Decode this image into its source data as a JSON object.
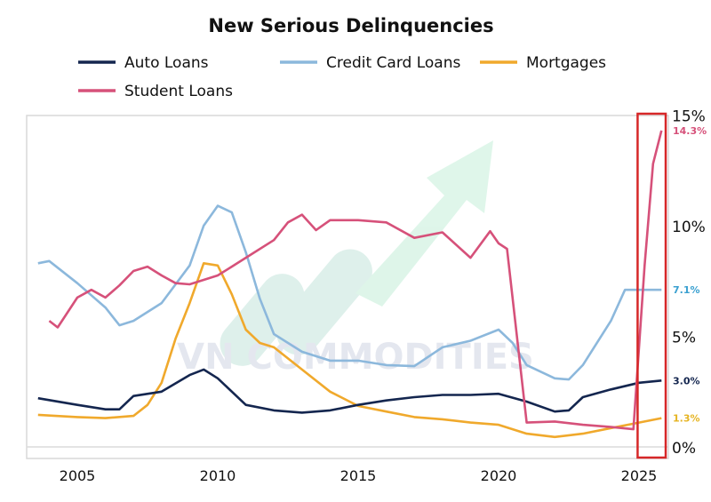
{
  "chart_data": {
    "type": "line",
    "title": "New Serious Delinquencies",
    "xlabel": "",
    "ylabel": "",
    "xlim": [
      2003.6,
      2026.3
    ],
    "ylim": [
      0,
      15
    ],
    "x_ticks": [
      "2005",
      "2010",
      "2015",
      "2020",
      "2025"
    ],
    "y_ticks": [
      "0%",
      "5%",
      "10%",
      "15%"
    ],
    "y_axis_side": "right",
    "grid": false,
    "legend_placement": "top",
    "highlight_box": {
      "from": 2024.95,
      "to": 2025.95,
      "color": "#d62728"
    },
    "watermark": "VN COMMODITIES",
    "series": [
      {
        "name": "Auto Loans",
        "color": "#14264f",
        "end_label": "3.0%",
        "points": [
          [
            2003.6,
            2.2
          ],
          [
            2005,
            1.9
          ],
          [
            2006,
            1.7
          ],
          [
            2006.5,
            1.7
          ],
          [
            2007,
            2.3
          ],
          [
            2008,
            2.5
          ],
          [
            2009,
            3.25
          ],
          [
            2009.5,
            3.5
          ],
          [
            2010,
            3.1
          ],
          [
            2011,
            1.9
          ],
          [
            2012,
            1.65
          ],
          [
            2013,
            1.55
          ],
          [
            2014,
            1.65
          ],
          [
            2015,
            1.9
          ],
          [
            2016,
            2.1
          ],
          [
            2017,
            2.25
          ],
          [
            2018,
            2.35
          ],
          [
            2019,
            2.35
          ],
          [
            2020,
            2.4
          ],
          [
            2021,
            2.05
          ],
          [
            2022,
            1.6
          ],
          [
            2022.5,
            1.65
          ],
          [
            2023,
            2.25
          ],
          [
            2024,
            2.6
          ],
          [
            2025,
            2.9
          ],
          [
            2025.8,
            3.0
          ]
        ]
      },
      {
        "name": "Credit Card Loans",
        "color": "#8cb8dc",
        "end_label": "7.1%",
        "points": [
          [
            2003.6,
            8.3
          ],
          [
            2004,
            8.4
          ],
          [
            2005,
            7.4
          ],
          [
            2006,
            6.3
          ],
          [
            2006.5,
            5.5
          ],
          [
            2007,
            5.7
          ],
          [
            2008,
            6.5
          ],
          [
            2009,
            8.2
          ],
          [
            2009.5,
            10.0
          ],
          [
            2010,
            10.9
          ],
          [
            2010.5,
            10.6
          ],
          [
            2011,
            8.8
          ],
          [
            2011.5,
            6.7
          ],
          [
            2012,
            5.1
          ],
          [
            2013,
            4.3
          ],
          [
            2014,
            3.9
          ],
          [
            2015,
            3.9
          ],
          [
            2016,
            3.7
          ],
          [
            2017,
            3.65
          ],
          [
            2018,
            4.5
          ],
          [
            2019,
            4.8
          ],
          [
            2020,
            5.3
          ],
          [
            2020.5,
            4.7
          ],
          [
            2021,
            3.7
          ],
          [
            2022,
            3.1
          ],
          [
            2022.5,
            3.05
          ],
          [
            2023,
            3.7
          ],
          [
            2024,
            5.7
          ],
          [
            2024.5,
            7.1
          ],
          [
            2025,
            7.1
          ],
          [
            2025.8,
            7.1
          ]
        ]
      },
      {
        "name": "Mortgages",
        "color": "#f0a92c",
        "end_label": "1.3%",
        "points": [
          [
            2003.6,
            1.45
          ],
          [
            2005,
            1.35
          ],
          [
            2006,
            1.3
          ],
          [
            2007,
            1.4
          ],
          [
            2007.5,
            1.9
          ],
          [
            2008,
            2.9
          ],
          [
            2008.5,
            4.9
          ],
          [
            2009,
            6.5
          ],
          [
            2009.5,
            8.3
          ],
          [
            2010,
            8.2
          ],
          [
            2010.5,
            6.9
          ],
          [
            2011,
            5.3
          ],
          [
            2011.5,
            4.7
          ],
          [
            2012,
            4.5
          ],
          [
            2013,
            3.5
          ],
          [
            2014,
            2.5
          ],
          [
            2015,
            1.85
          ],
          [
            2016,
            1.6
          ],
          [
            2017,
            1.35
          ],
          [
            2018,
            1.25
          ],
          [
            2019,
            1.1
          ],
          [
            2020,
            1.0
          ],
          [
            2021,
            0.6
          ],
          [
            2022,
            0.45
          ],
          [
            2023,
            0.6
          ],
          [
            2024,
            0.85
          ],
          [
            2025,
            1.1
          ],
          [
            2025.8,
            1.3
          ]
        ]
      },
      {
        "name": "Student Loans",
        "color": "#d6517a",
        "end_label": "14.3%",
        "points": [
          [
            2004,
            5.7
          ],
          [
            2004.3,
            5.4
          ],
          [
            2005,
            6.75
          ],
          [
            2005.5,
            7.1
          ],
          [
            2006,
            6.75
          ],
          [
            2006.5,
            7.3
          ],
          [
            2007,
            7.95
          ],
          [
            2007.5,
            8.15
          ],
          [
            2008,
            7.75
          ],
          [
            2008.5,
            7.4
          ],
          [
            2009,
            7.35
          ],
          [
            2010,
            7.75
          ],
          [
            2010.5,
            8.15
          ],
          [
            2011,
            8.55
          ],
          [
            2012,
            9.35
          ],
          [
            2012.5,
            10.15
          ],
          [
            2013,
            10.5
          ],
          [
            2013.5,
            9.8
          ],
          [
            2014,
            10.25
          ],
          [
            2015,
            10.25
          ],
          [
            2016,
            10.15
          ],
          [
            2017,
            9.45
          ],
          [
            2018,
            9.7
          ],
          [
            2019,
            8.55
          ],
          [
            2019.7,
            9.75
          ],
          [
            2020,
            9.2
          ],
          [
            2020.3,
            8.95
          ],
          [
            2021,
            1.1
          ],
          [
            2022,
            1.15
          ],
          [
            2023,
            1.0
          ],
          [
            2024,
            0.9
          ],
          [
            2024.8,
            0.8
          ],
          [
            2025.2,
            8.2
          ],
          [
            2025.5,
            12.8
          ],
          [
            2025.8,
            14.3
          ]
        ]
      }
    ]
  }
}
